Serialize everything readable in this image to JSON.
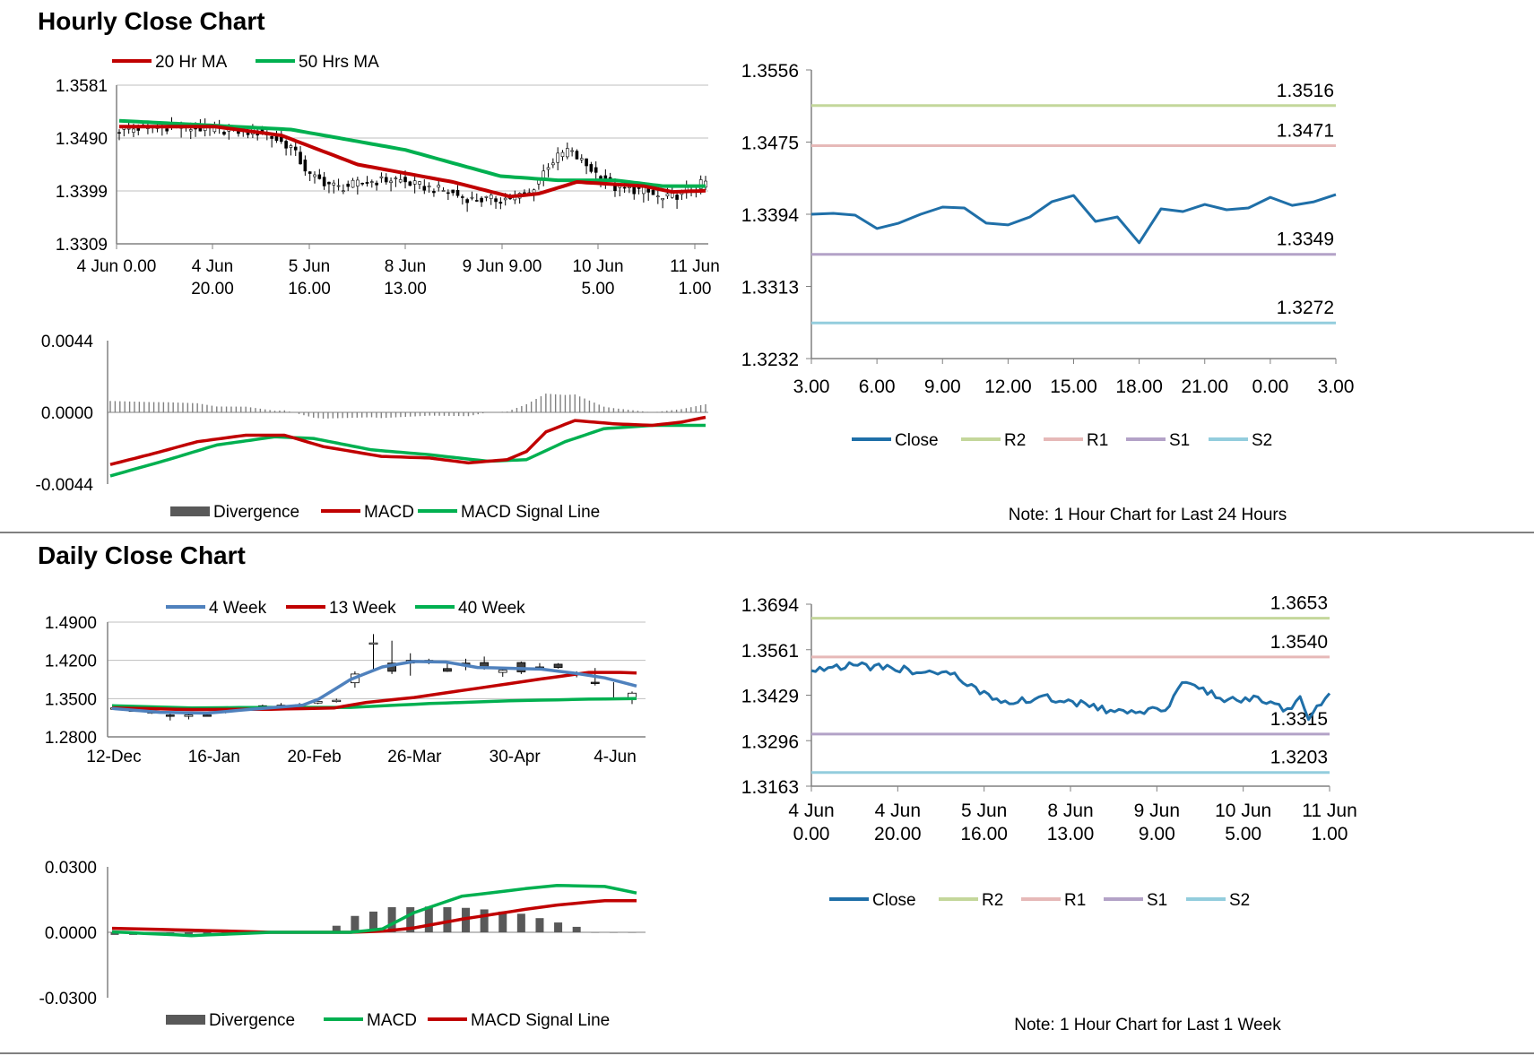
{
  "sections": {
    "hourly_title": "Hourly Close Chart",
    "daily_title": "Daily Close Chart"
  },
  "chart_data": [
    {
      "id": "hourly_price",
      "type": "candlestick",
      "legend": [
        "20 Hr MA",
        "50 Hrs MA"
      ],
      "colors": {
        "ma20": "#c00000",
        "ma50": "#00b050",
        "candle": "#000000"
      },
      "y_ticks": [
        "1.3581",
        "1.3490",
        "1.3399",
        "1.3309"
      ],
      "ylim": [
        1.3309,
        1.3581
      ],
      "x_ticks": [
        {
          "l1": "4 Jun 0.00",
          "l2": ""
        },
        {
          "l1": "4 Jun",
          "l2": "20.00"
        },
        {
          "l1": "5 Jun",
          "l2": "16.00"
        },
        {
          "l1": "8 Jun",
          "l2": "13.00"
        },
        {
          "l1": "9 Jun 9.00",
          "l2": ""
        },
        {
          "l1": "10 Jun",
          "l2": "5.00"
        },
        {
          "l1": "11 Jun",
          "l2": "1.00"
        }
      ],
      "x_count": 124,
      "close_anchors": [
        [
          0,
          1.3505
        ],
        [
          10,
          1.351
        ],
        [
          20,
          1.3505
        ],
        [
          30,
          1.35
        ],
        [
          36,
          1.3475
        ],
        [
          40,
          1.3425
        ],
        [
          46,
          1.3405
        ],
        [
          52,
          1.3415
        ],
        [
          58,
          1.342
        ],
        [
          62,
          1.341
        ],
        [
          68,
          1.34
        ],
        [
          74,
          1.3385
        ],
        [
          80,
          1.3385
        ],
        [
          86,
          1.3395
        ],
        [
          90,
          1.3445
        ],
        [
          94,
          1.347
        ],
        [
          100,
          1.343
        ],
        [
          104,
          1.3405
        ],
        [
          110,
          1.34
        ],
        [
          114,
          1.3385
        ],
        [
          118,
          1.3395
        ],
        [
          123,
          1.3415
        ]
      ],
      "ma20_anchors": [
        [
          0,
          1.351
        ],
        [
          20,
          1.351
        ],
        [
          34,
          1.3495
        ],
        [
          50,
          1.3445
        ],
        [
          70,
          1.3415
        ],
        [
          82,
          1.339
        ],
        [
          88,
          1.3395
        ],
        [
          96,
          1.3415
        ],
        [
          110,
          1.3408
        ],
        [
          116,
          1.3398
        ],
        [
          123,
          1.34
        ]
      ],
      "ma50_anchors": [
        [
          0,
          1.352
        ],
        [
          36,
          1.3505
        ],
        [
          60,
          1.347
        ],
        [
          80,
          1.3425
        ],
        [
          92,
          1.3418
        ],
        [
          104,
          1.3418
        ],
        [
          114,
          1.3408
        ],
        [
          123,
          1.3408
        ]
      ]
    },
    {
      "id": "hourly_macd",
      "type": "macd",
      "legend": [
        "Divergence",
        "MACD",
        "MACD Signal Line"
      ],
      "colors": {
        "macd": "#c00000",
        "signal": "#00b050",
        "div": "#808080"
      },
      "y_ticks": [
        "0.0044",
        "0.0000",
        "-0.0044"
      ],
      "ylim": [
        -0.0044,
        0.0044
      ],
      "x_count": 124,
      "macd_anchors": [
        [
          0,
          -0.0032
        ],
        [
          8,
          -0.0026
        ],
        [
          18,
          -0.0018
        ],
        [
          28,
          -0.0014
        ],
        [
          36,
          -0.0014
        ],
        [
          44,
          -0.0021
        ],
        [
          56,
          -0.0027
        ],
        [
          66,
          -0.0028
        ],
        [
          74,
          -0.0031
        ],
        [
          82,
          -0.0029
        ],
        [
          86,
          -0.0024
        ],
        [
          90,
          -0.0012
        ],
        [
          96,
          -0.0005
        ],
        [
          104,
          -0.0007
        ],
        [
          112,
          -0.0008
        ],
        [
          118,
          -0.0006
        ],
        [
          123,
          -0.0003
        ]
      ],
      "signal_anchors": [
        [
          0,
          -0.0039
        ],
        [
          12,
          -0.0029
        ],
        [
          22,
          -0.002
        ],
        [
          34,
          -0.0015
        ],
        [
          42,
          -0.0016
        ],
        [
          54,
          -0.0023
        ],
        [
          66,
          -0.0026
        ],
        [
          78,
          -0.003
        ],
        [
          86,
          -0.0029
        ],
        [
          94,
          -0.0018
        ],
        [
          102,
          -0.001
        ],
        [
          112,
          -0.0008
        ],
        [
          123,
          -0.0008
        ]
      ]
    },
    {
      "id": "hourly_pivot",
      "type": "line",
      "legend": [
        "Close",
        "R2",
        "R1",
        "S1",
        "S2"
      ],
      "colors": {
        "close": "#1f6fa8",
        "r2": "#c4d79b",
        "r1": "#e6b9b8",
        "s1": "#b3a2c7",
        "s2": "#93cddd"
      },
      "y_ticks": [
        "1.3556",
        "1.3475",
        "1.3394",
        "1.3313",
        "1.3232"
      ],
      "ylim": [
        1.3232,
        1.3556
      ],
      "x_ticks": [
        "3.00",
        "6.00",
        "9.00",
        "12.00",
        "15.00",
        "18.00",
        "21.00",
        "0.00",
        "3.00"
      ],
      "levels": {
        "R2": 1.3516,
        "R1": 1.3471,
        "S1": 1.3349,
        "S2": 1.3272
      },
      "level_labels": {
        "R2": "1.3516",
        "R1": "1.3471",
        "S1": "1.3349",
        "S2": "1.3272"
      },
      "close": [
        1.3394,
        1.3395,
        1.3393,
        1.3378,
        1.3384,
        1.3394,
        1.3402,
        1.3401,
        1.3384,
        1.3382,
        1.3391,
        1.3408,
        1.3415,
        1.3386,
        1.3391,
        1.3362,
        1.34,
        1.3397,
        1.3405,
        1.3399,
        1.3401,
        1.3413,
        1.3404,
        1.3408,
        1.3416
      ],
      "note": "Note: 1 Hour Chart for Last 24 Hours"
    },
    {
      "id": "daily_price",
      "type": "candlestick",
      "legend": [
        "4 Week",
        "13 Week",
        "40 Week"
      ],
      "colors": {
        "w4": "#4f81bd",
        "w13": "#c00000",
        "w40": "#00b050",
        "candle": "#000000"
      },
      "y_ticks": [
        "1.4900",
        "1.4200",
        "1.3500",
        "1.2800"
      ],
      "ylim": [
        1.28,
        1.49
      ],
      "x_ticks": [
        "12-Dec",
        "16-Jan",
        "20-Feb",
        "26-Mar",
        "30-Apr",
        "4-Jun"
      ],
      "candles": [
        {
          "o": 1.3315,
          "c": 1.333,
          "h": 1.3345,
          "l": 1.33
        },
        {
          "o": 1.329,
          "c": 1.328,
          "h": 1.33,
          "l": 1.3265
        },
        {
          "o": 1.326,
          "c": 1.3255,
          "h": 1.327,
          "l": 1.322
        },
        {
          "o": 1.32,
          "c": 1.319,
          "h": 1.322,
          "l": 1.31
        },
        {
          "o": 1.319,
          "c": 1.32,
          "h": 1.323,
          "l": 1.312
        },
        {
          "o": 1.32,
          "c": 1.3195,
          "h": 1.322,
          "l": 1.318
        },
        {
          "o": 1.328,
          "c": 1.325,
          "h": 1.329,
          "l": 1.323
        },
        {
          "o": 1.332,
          "c": 1.333,
          "h": 1.336,
          "l": 1.33
        },
        {
          "o": 1.336,
          "c": 1.337,
          "h": 1.339,
          "l": 1.334
        },
        {
          "o": 1.337,
          "c": 1.338,
          "h": 1.342,
          "l": 1.335
        },
        {
          "o": 1.338,
          "c": 1.339,
          "h": 1.342,
          "l": 1.336
        },
        {
          "o": 1.342,
          "c": 1.345,
          "h": 1.346,
          "l": 1.34
        },
        {
          "o": 1.345,
          "c": 1.347,
          "h": 1.35,
          "l": 1.343
        },
        {
          "o": 1.379,
          "c": 1.395,
          "h": 1.4,
          "l": 1.37
        },
        {
          "o": 1.45,
          "c": 1.452,
          "h": 1.468,
          "l": 1.4
        },
        {
          "o": 1.415,
          "c": 1.4,
          "h": 1.456,
          "l": 1.395
        },
        {
          "o": 1.415,
          "c": 1.42,
          "h": 1.433,
          "l": 1.392
        },
        {
          "o": 1.42,
          "c": 1.417,
          "h": 1.423,
          "l": 1.413
        },
        {
          "o": 1.405,
          "c": 1.4,
          "h": 1.418,
          "l": 1.399
        },
        {
          "o": 1.415,
          "c": 1.41,
          "h": 1.423,
          "l": 1.402
        },
        {
          "o": 1.416,
          "c": 1.408,
          "h": 1.427,
          "l": 1.403
        },
        {
          "o": 1.398,
          "c": 1.402,
          "h": 1.408,
          "l": 1.39
        },
        {
          "o": 1.416,
          "c": 1.399,
          "h": 1.418,
          "l": 1.395
        },
        {
          "o": 1.408,
          "c": 1.405,
          "h": 1.415,
          "l": 1.403
        },
        {
          "o": 1.413,
          "c": 1.407,
          "h": 1.415,
          "l": 1.405
        },
        {
          "o": 1.396,
          "c": 1.394,
          "h": 1.4,
          "l": 1.389
        },
        {
          "o": 1.38,
          "c": 1.378,
          "h": 1.406,
          "l": 1.374
        },
        {
          "o": 1.351,
          "c": 1.35,
          "h": 1.38,
          "l": 1.348
        },
        {
          "o": 1.348,
          "c": 1.36,
          "h": 1.363,
          "l": 1.34
        }
      ],
      "w4_anchors": [
        [
          0,
          1.332
        ],
        [
          3,
          1.325
        ],
        [
          6,
          1.3235
        ],
        [
          9,
          1.331
        ],
        [
          12,
          1.338
        ],
        [
          13,
          1.349
        ],
        [
          15,
          1.385
        ],
        [
          17,
          1.408
        ],
        [
          19,
          1.418
        ],
        [
          21,
          1.417
        ],
        [
          23,
          1.407
        ],
        [
          27,
          1.404
        ],
        [
          29,
          1.397
        ],
        [
          31,
          1.388
        ],
        [
          33,
          1.373
        ]
      ],
      "w13_anchors": [
        [
          0,
          1.333
        ],
        [
          5,
          1.33
        ],
        [
          10,
          1.3305
        ],
        [
          14,
          1.333
        ],
        [
          16,
          1.343
        ],
        [
          19,
          1.352
        ],
        [
          23,
          1.369
        ],
        [
          27,
          1.386
        ],
        [
          30,
          1.398
        ],
        [
          32,
          1.398
        ],
        [
          33,
          1.397
        ]
      ],
      "w40_anchors": [
        [
          0,
          1.337
        ],
        [
          5,
          1.333
        ],
        [
          10,
          1.334
        ],
        [
          15,
          1.334
        ],
        [
          20,
          1.341
        ],
        [
          25,
          1.346
        ],
        [
          30,
          1.349
        ],
        [
          33,
          1.35
        ]
      ],
      "x_count": 34
    },
    {
      "id": "daily_macd",
      "type": "macd",
      "legend": [
        "Divergence",
        "MACD",
        "MACD Signal Line"
      ],
      "colors": {
        "macd": "#00b050",
        "signal": "#c00000",
        "div": "#595959"
      },
      "y_ticks": [
        "0.0300",
        "0.0000",
        "-0.0300"
      ],
      "ylim": [
        -0.03,
        0.03
      ],
      "x_count": 29,
      "divergence": [
        -0.0012,
        -0.0012,
        -0.0008,
        -0.0005,
        -0.0008,
        -0.0008,
        -0.0005,
        0,
        0,
        0,
        0,
        0,
        0.003,
        0.0075,
        0.0095,
        0.0115,
        0.0115,
        0.0118,
        0.0115,
        0.0112,
        0.0105,
        0.0095,
        0.0085,
        0.0065,
        0.0045,
        0.0025,
        0,
        0,
        0
      ],
      "macd_anchors": [
        [
          0,
          0.0002
        ],
        [
          5,
          -0.0015
        ],
        [
          10,
          0.0
        ],
        [
          15,
          0.0
        ],
        [
          17,
          0.0015
        ],
        [
          19,
          0.009
        ],
        [
          22,
          0.0165
        ],
        [
          26,
          0.02
        ],
        [
          28,
          0.0215
        ],
        [
          31,
          0.021
        ],
        [
          33,
          0.018
        ]
      ],
      "signal_anchors": [
        [
          0,
          0.0018
        ],
        [
          5,
          0.001
        ],
        [
          10,
          0.0
        ],
        [
          15,
          0.0
        ],
        [
          17,
          0.0005
        ],
        [
          19,
          0.002
        ],
        [
          22,
          0.006
        ],
        [
          26,
          0.0105
        ],
        [
          28,
          0.0125
        ],
        [
          31,
          0.0145
        ],
        [
          33,
          0.0145
        ]
      ]
    },
    {
      "id": "weekly_pivot",
      "type": "line",
      "legend": [
        "Close",
        "R2",
        "R1",
        "S1",
        "S2"
      ],
      "colors": {
        "close": "#1f6fa8",
        "r2": "#c4d79b",
        "r1": "#e6b9b8",
        "s1": "#b3a2c7",
        "s2": "#93cddd"
      },
      "y_ticks": [
        "1.3694",
        "1.3561",
        "1.3429",
        "1.3296",
        "1.3163"
      ],
      "ylim": [
        1.3163,
        1.3694
      ],
      "x_ticks": [
        {
          "l1": "4 Jun",
          "l2": "0.00"
        },
        {
          "l1": "4 Jun",
          "l2": "20.00"
        },
        {
          "l1": "5 Jun",
          "l2": "16.00"
        },
        {
          "l1": "8 Jun",
          "l2": "13.00"
        },
        {
          "l1": "9 Jun",
          "l2": "9.00"
        },
        {
          "l1": "10 Jun",
          "l2": "5.00"
        },
        {
          "l1": "11 Jun",
          "l2": "1.00"
        }
      ],
      "levels": {
        "R2": 1.3653,
        "R1": 1.354,
        "S1": 1.3315,
        "S2": 1.3203
      },
      "level_labels": {
        "R2": "1.3653",
        "R1": "1.3540",
        "S1": "1.3315",
        "S2": "1.3203"
      },
      "x_count": 124,
      "close_anchors": [
        [
          0,
          1.3495
        ],
        [
          2,
          1.351
        ],
        [
          10,
          1.3515
        ],
        [
          20,
          1.3505
        ],
        [
          30,
          1.3495
        ],
        [
          34,
          1.3485
        ],
        [
          36,
          1.346
        ],
        [
          40,
          1.344
        ],
        [
          44,
          1.342
        ],
        [
          48,
          1.341
        ],
        [
          56,
          1.342
        ],
        [
          62,
          1.341
        ],
        [
          68,
          1.339
        ],
        [
          74,
          1.3378
        ],
        [
          80,
          1.338
        ],
        [
          84,
          1.339
        ],
        [
          88,
          1.346
        ],
        [
          90,
          1.347
        ],
        [
          94,
          1.344
        ],
        [
          98,
          1.341
        ],
        [
          104,
          1.342
        ],
        [
          110,
          1.34
        ],
        [
          114,
          1.338
        ],
        [
          116,
          1.342
        ],
        [
          118,
          1.336
        ],
        [
          121,
          1.341
        ],
        [
          123,
          1.3425
        ]
      ],
      "note": "Note: 1 Hour Chart for  Last 1 Week"
    }
  ]
}
